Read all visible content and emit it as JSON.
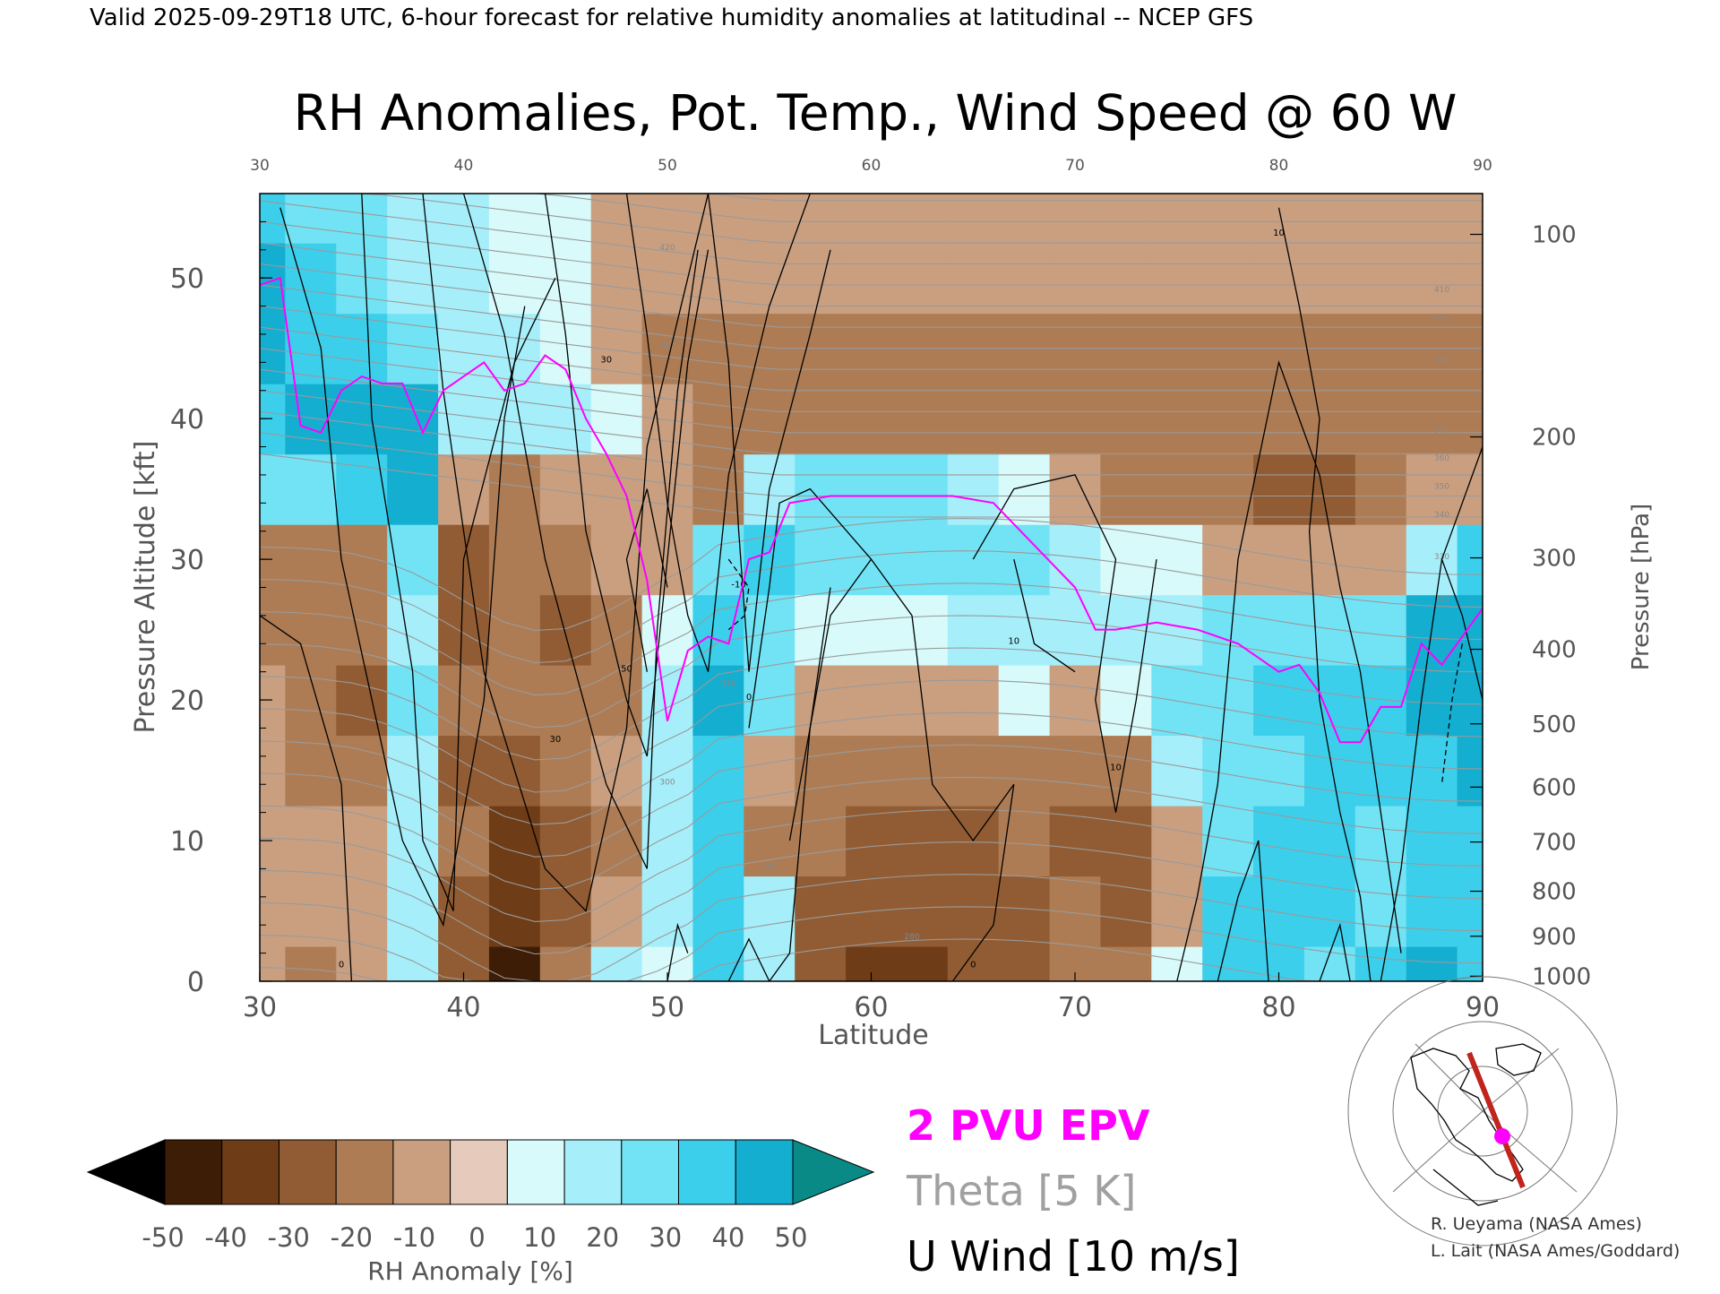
{
  "header": {
    "valid_line": "Valid 2025-09-29T18 UTC, 6-hour forecast for relative humidity anomalies at latitudinal -- NCEP GFS",
    "title": "RH Anomalies, Pot. Temp., Wind Speed @ 60 W"
  },
  "chart_data": {
    "type": "heatmap",
    "title": "RH Anomalies, Pot. Temp., Wind Speed @ 60 W",
    "xlabel": "Latitude",
    "ylabel": "Pressure Altitude [kft]",
    "y2label": "Pressure [hPa]",
    "xlim": [
      30,
      90
    ],
    "ylim": [
      0,
      56
    ],
    "x_ticks": [
      30,
      40,
      50,
      60,
      70,
      80,
      90
    ],
    "y_ticks": [
      0,
      10,
      20,
      30,
      40,
      50
    ],
    "pressure_ticks": [
      {
        "label": "100",
        "kft": 53.1
      },
      {
        "label": "200",
        "kft": 38.7
      },
      {
        "label": "300",
        "kft": 30.1
      },
      {
        "label": "400",
        "kft": 23.6
      },
      {
        "label": "500",
        "kft": 18.3
      },
      {
        "label": "600",
        "kft": 13.8
      },
      {
        "label": "700",
        "kft": 9.9
      },
      {
        "label": "800",
        "kft": 6.4
      },
      {
        "label": "900",
        "kft": 3.2
      },
      {
        "label": "1000",
        "kft": 0.36
      }
    ],
    "rh_anomaly": {
      "lat": [
        30,
        32.5,
        35,
        37.5,
        40,
        42.5,
        45,
        47.5,
        50,
        52.5,
        55,
        57.5,
        60,
        62.5,
        65,
        67.5,
        70,
        72.5,
        75,
        77.5,
        80,
        82.5,
        85,
        87.5,
        90
      ],
      "kft": [
        0,
        5,
        10,
        15,
        20,
        25,
        30,
        35,
        40,
        45,
        50,
        55
      ],
      "values": [
        [
          -5,
          -15,
          -10,
          10,
          -25,
          -45,
          -15,
          10,
          5,
          30,
          10,
          -30,
          -35,
          -35,
          -30,
          -25,
          -20,
          -15,
          5,
          30,
          35,
          25,
          30,
          40,
          30
        ],
        [
          -10,
          -10,
          -5,
          15,
          -25,
          -40,
          -25,
          -5,
          10,
          35,
          15,
          -25,
          -30,
          -30,
          -30,
          -25,
          -20,
          -25,
          -5,
          30,
          35,
          30,
          25,
          35,
          30
        ],
        [
          -10,
          -5,
          -10,
          15,
          -20,
          -35,
          -25,
          -15,
          15,
          35,
          -20,
          -20,
          -25,
          -25,
          -25,
          -20,
          -25,
          -30,
          -10,
          25,
          30,
          30,
          25,
          30,
          30
        ],
        [
          -5,
          -15,
          -20,
          10,
          -25,
          -25,
          -20,
          -10,
          15,
          35,
          -10,
          -15,
          -20,
          -20,
          -20,
          -15,
          -15,
          -15,
          10,
          20,
          25,
          35,
          30,
          35,
          40
        ],
        [
          -10,
          -20,
          -25,
          20,
          -20,
          -20,
          -20,
          -15,
          10,
          40,
          20,
          -10,
          -10,
          -10,
          -5,
          5,
          -5,
          0,
          20,
          20,
          30,
          35,
          35,
          40,
          45
        ],
        [
          -15,
          -20,
          -20,
          15,
          -25,
          -20,
          -25,
          -15,
          5,
          30,
          25,
          5,
          0,
          0,
          10,
          15,
          10,
          10,
          15,
          25,
          25,
          25,
          25,
          40,
          45
        ],
        [
          -20,
          -20,
          -15,
          20,
          -25,
          -15,
          -15,
          -10,
          -5,
          25,
          30,
          25,
          20,
          20,
          20,
          20,
          15,
          5,
          0,
          -5,
          -10,
          -10,
          -5,
          10,
          35
        ],
        [
          25,
          20,
          30,
          45,
          -10,
          -15,
          -10,
          -10,
          -5,
          -15,
          15,
          20,
          20,
          20,
          15,
          5,
          -10,
          -15,
          -15,
          -20,
          -25,
          -25,
          -20,
          -10,
          -10
        ],
        [
          30,
          45,
          40,
          40,
          10,
          10,
          10,
          0,
          -10,
          -20,
          -15,
          -15,
          -15,
          -15,
          -15,
          -15,
          -15,
          -15,
          -15,
          -15,
          -15,
          -15,
          -15,
          -15,
          -15
        ],
        [
          40,
          35,
          30,
          20,
          15,
          10,
          5,
          -5,
          -15,
          -15,
          -15,
          -15,
          -15,
          -15,
          -15,
          -15,
          -15,
          -15,
          -15,
          -15,
          -15,
          -15,
          -15,
          -15,
          -15
        ],
        [
          40,
          30,
          20,
          15,
          10,
          5,
          0,
          -5,
          -10,
          -10,
          -10,
          -10,
          -10,
          -10,
          -10,
          -10,
          -10,
          -10,
          -10,
          -10,
          -10,
          -10,
          -10,
          -10,
          -10
        ],
        [
          30,
          25,
          20,
          15,
          10,
          5,
          0,
          -5,
          -10,
          -10,
          -10,
          -10,
          -10,
          -10,
          -10,
          -10,
          -10,
          -10,
          -10,
          -10,
          -10,
          -10,
          -10,
          -10,
          -10
        ]
      ]
    },
    "epv_2pvu": {
      "lat": [
        30,
        31,
        32,
        33,
        34,
        35,
        36,
        37,
        38,
        39,
        40,
        41,
        42,
        43,
        44,
        45,
        46,
        47,
        48,
        49,
        50,
        51,
        52,
        53,
        54,
        55,
        56,
        58,
        60,
        62,
        64,
        66,
        68,
        70,
        71,
        72,
        74,
        76,
        78,
        80,
        81,
        82,
        83,
        84,
        85,
        86,
        87,
        88,
        89,
        90
      ],
      "kft": [
        49.5,
        50,
        39.5,
        39,
        42,
        43,
        42.5,
        42.5,
        39,
        42,
        43,
        44,
        42,
        42.5,
        44.5,
        43.5,
        40,
        37.5,
        34.5,
        28.5,
        18.5,
        23.5,
        24.5,
        24,
        30,
        30.5,
        34,
        34.5,
        34.5,
        34.5,
        34.5,
        34,
        31,
        28,
        25,
        25,
        25.5,
        25,
        24,
        22,
        22.5,
        20.5,
        17,
        17,
        19.5,
        19.5,
        24,
        22.5,
        24.5,
        26.5
      ]
    },
    "theta_labels": [
      "280",
      "290",
      "300",
      "310",
      "320",
      "330",
      "340",
      "350",
      "360",
      "370",
      "380",
      "390",
      "400",
      "410",
      "420"
    ],
    "u_wind_labels": [
      "0",
      "-10",
      "10",
      "30",
      "50"
    ],
    "colorbar": {
      "label": "RH Anomaly [%]",
      "ticks": [
        "-50",
        "-40",
        "-30",
        "-20",
        "-10",
        "0",
        "10",
        "20",
        "30",
        "40",
        "50"
      ],
      "colors": [
        "#3d1d06",
        "#6e3d17",
        "#915c33",
        "#ae7c54",
        "#c99f80",
        "#e6cbbd",
        "#d8fafa",
        "#a6effa",
        "#72e3f5",
        "#3ccfeb",
        "#14aed0"
      ],
      "under_color": "#000000",
      "over_color": "#0a8a86"
    },
    "legend": {
      "pvu": "2 PVU EPV",
      "theta": "Theta [5 K]",
      "wind": "U Wind [10 m/s]",
      "pvu_color": "#ff00ff",
      "theta_color": "#a0a0a0",
      "wind_color": "#000000"
    }
  },
  "credits": {
    "line1": "R. Ueyama (NASA Ames)",
    "line2": "L. Lait (NASA Ames/Goddard)"
  }
}
